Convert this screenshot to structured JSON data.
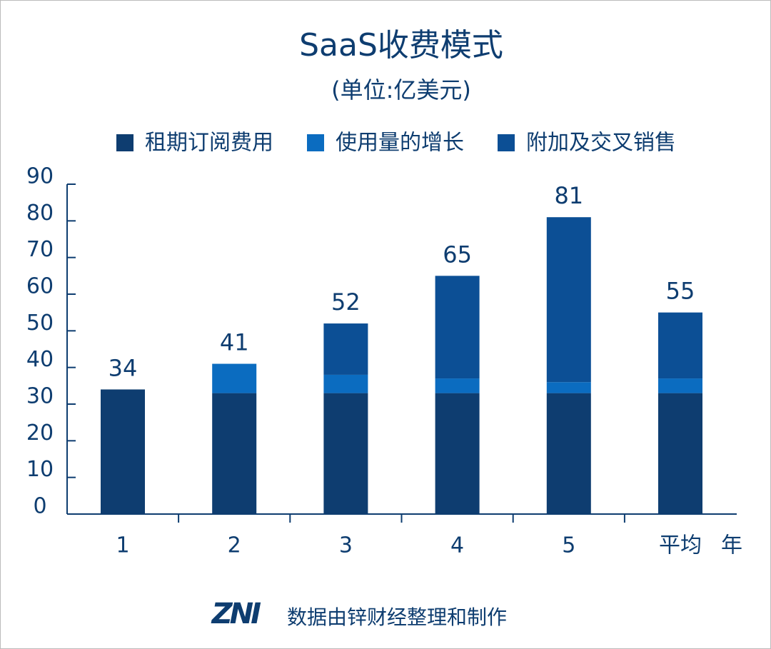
{
  "chart_data": {
    "type": "stacked-bar",
    "title": "SaaS收费模式",
    "subtitle": "(单位:亿美元)",
    "categories": [
      "1",
      "2",
      "3",
      "4",
      "5",
      "平均"
    ],
    "x_label": "年",
    "series": [
      {
        "name": "租期订阅费用",
        "color": "#0e3d70",
        "values": [
          34,
          33,
          33,
          33,
          33,
          33
        ]
      },
      {
        "name": "使用量的增长",
        "color": "#0b6cc0",
        "values": [
          0,
          8,
          5,
          4,
          3,
          4
        ]
      },
      {
        "name": "附加及交叉销售",
        "color": "#0c4f95",
        "values": [
          0,
          0,
          14,
          28,
          45,
          18
        ]
      }
    ],
    "totals": [
      34,
      41,
      52,
      65,
      81,
      55
    ],
    "ylim": [
      0,
      90
    ],
    "yticks": [
      0,
      10,
      20,
      30,
      40,
      50,
      60,
      70,
      80,
      90
    ],
    "source": "数据由锌财经整理和制作",
    "logo": "ZNI"
  }
}
